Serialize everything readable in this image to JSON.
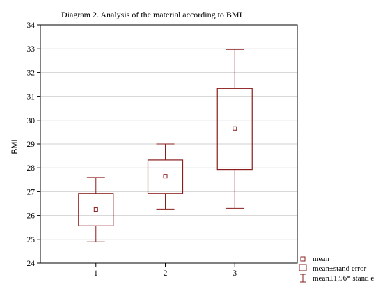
{
  "chart_data": {
    "type": "box",
    "title": "Diagram 2. Analysis of the material according to BMI",
    "xlabel": "",
    "ylabel": "BMI",
    "ylim": [
      24,
      34
    ],
    "yticks": [
      24,
      25,
      26,
      27,
      28,
      29,
      30,
      31,
      32,
      33,
      34
    ],
    "grid": true,
    "categories": [
      "1",
      "2",
      "3"
    ],
    "x_positions": [
      1,
      2,
      3
    ],
    "xlim": [
      0.2,
      3.9
    ],
    "series": [
      {
        "x": 1,
        "mean": 26.25,
        "se_low": 25.57,
        "se_high": 26.93,
        "ci_low": 24.9,
        "ci_high": 27.6
      },
      {
        "x": 2,
        "mean": 27.65,
        "se_low": 26.93,
        "se_high": 28.33,
        "ci_low": 26.27,
        "ci_high": 29.0
      },
      {
        "x": 3,
        "mean": 29.65,
        "se_low": 27.93,
        "se_high": 31.33,
        "ci_low": 26.3,
        "ci_high": 32.97
      }
    ],
    "legend": {
      "position": "bottom-right",
      "entries": [
        "mean",
        "mean±stand error",
        "mean±1,96* stand e"
      ]
    },
    "colors": {
      "marks": "#8b1c1c",
      "grid": "#d2d2d2",
      "axis": "#000000"
    }
  }
}
